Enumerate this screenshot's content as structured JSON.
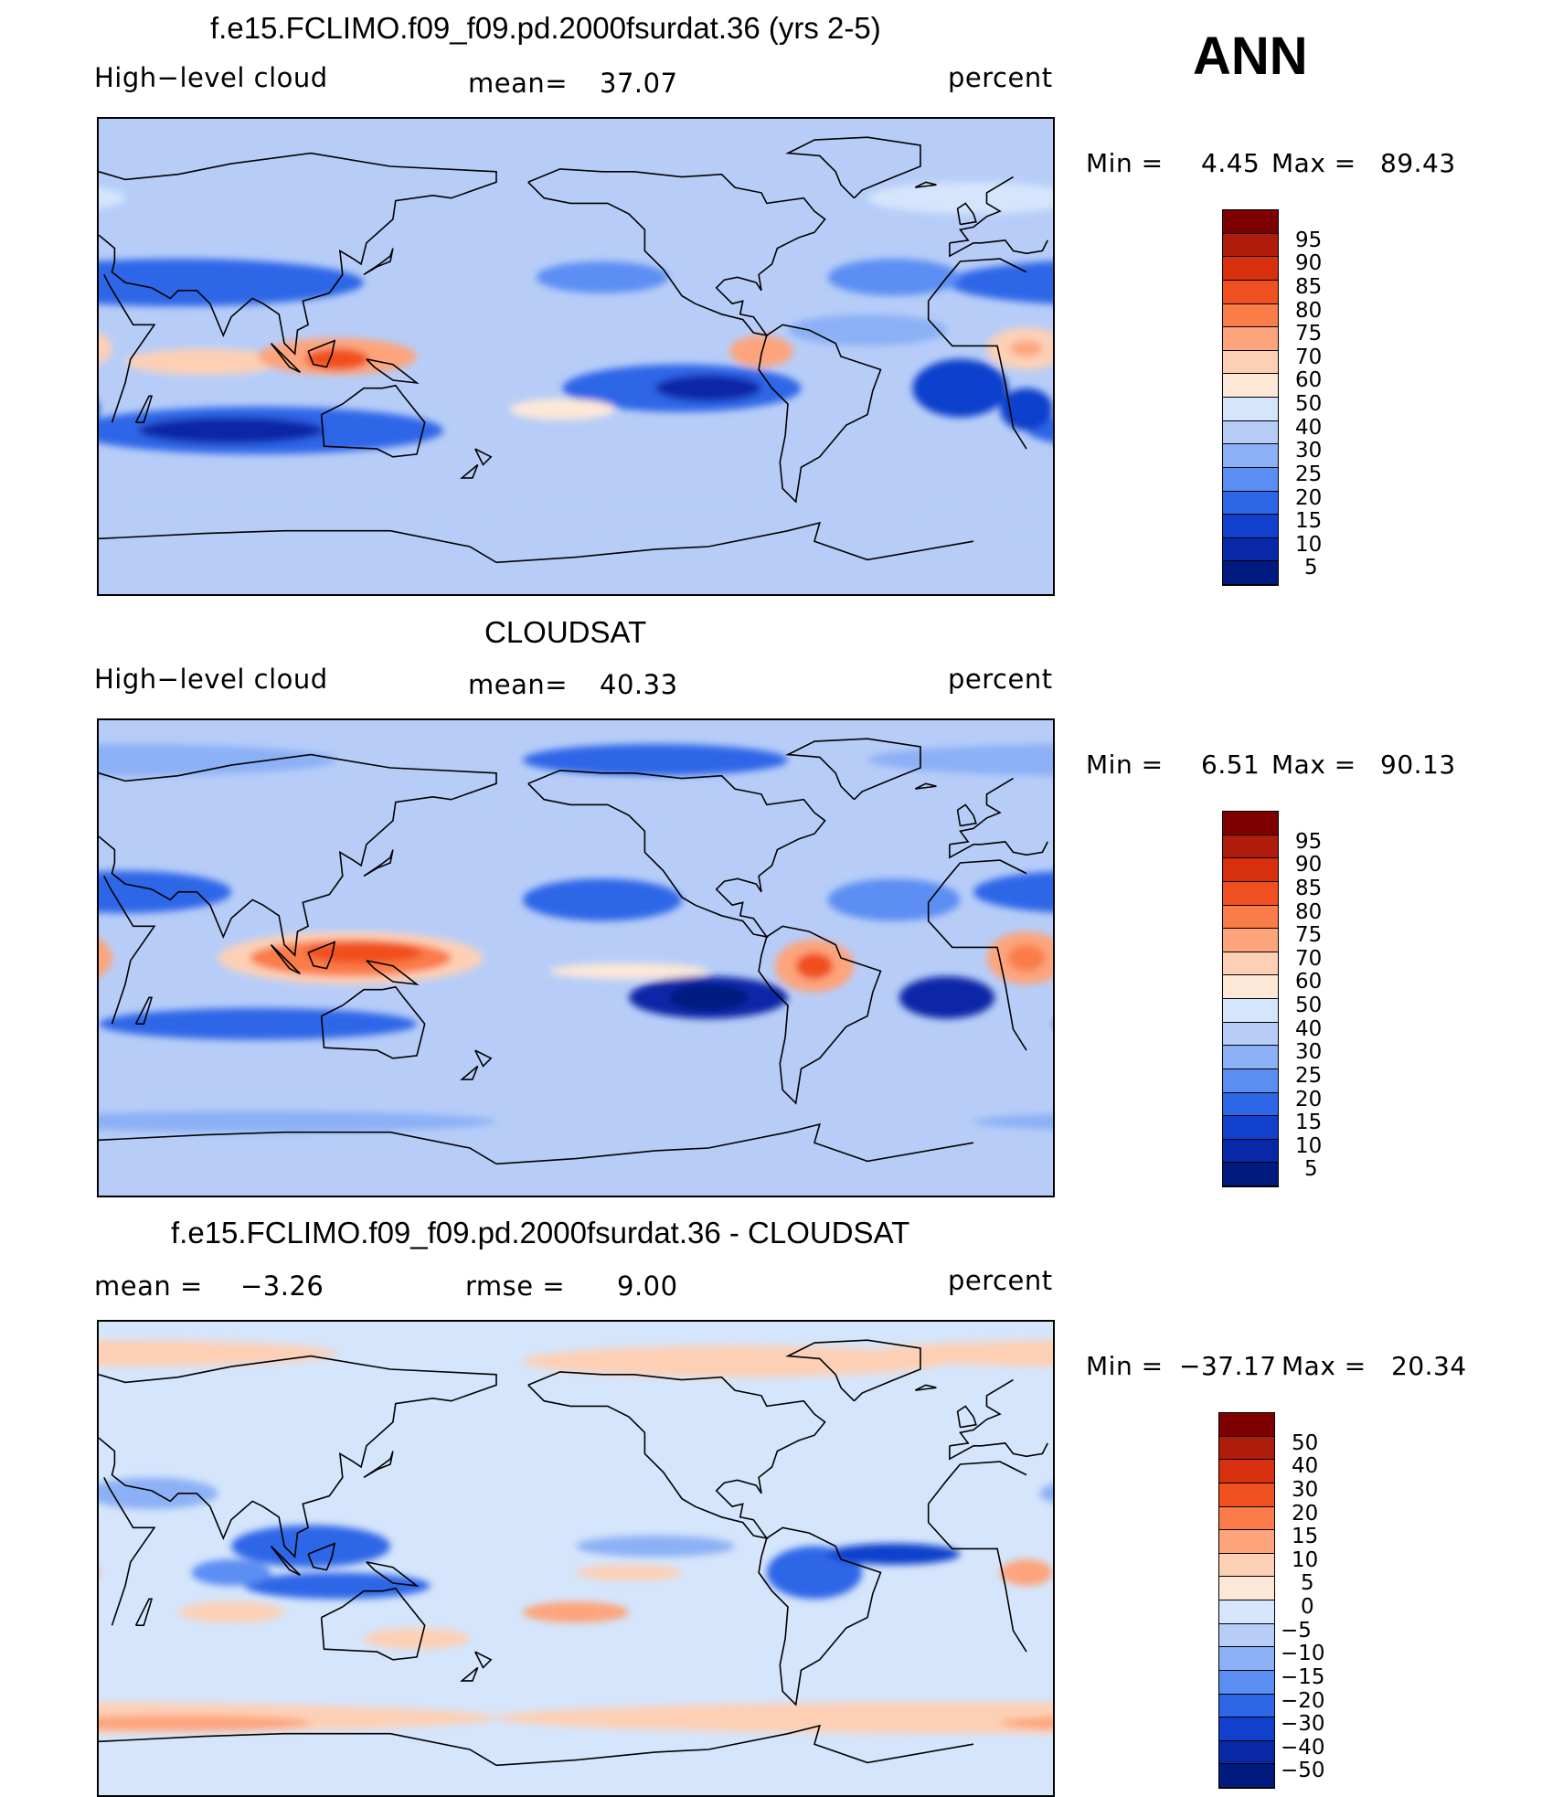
{
  "season": "ANN",
  "chart_data": [
    {
      "type": "heatmap",
      "title": "f.e15.FCLIMO.f09_f09.pd.2000fsurdat.36 (yrs 2-5)",
      "left_label": "High−level cloud",
      "stat_label": "mean=",
      "stat_value": "37.07",
      "units": "percent",
      "range_label_min": "Min  =",
      "min": "4.45",
      "range_label_max": "Max  =",
      "max": "89.43",
      "levels": [
        "95",
        "90",
        "85",
        "80",
        "75",
        "70",
        "60",
        "50",
        "40",
        "30",
        "25",
        "20",
        "15",
        "10",
        "5"
      ],
      "colors": [
        "#7f0000",
        "#b01c0c",
        "#d8300f",
        "#f0501f",
        "#fa7c48",
        "#fda47c",
        "#fdd0b6",
        "#fde8d8",
        "#d5e5fb",
        "#b7cdf8",
        "#8bb0f5",
        "#5b8ef3",
        "#2e66e8",
        "#1040cc",
        "#0828a8",
        "#001a80"
      ]
    },
    {
      "type": "heatmap",
      "title": "CLOUDSAT",
      "left_label": "High−level cloud",
      "stat_label": "mean=",
      "stat_value": "40.33",
      "units": "percent",
      "range_label_min": "Min  =",
      "min": "6.51",
      "range_label_max": "Max  =",
      "max": "90.13",
      "levels": [
        "95",
        "90",
        "85",
        "80",
        "75",
        "70",
        "60",
        "50",
        "40",
        "30",
        "25",
        "20",
        "15",
        "10",
        "5"
      ],
      "colors": [
        "#7f0000",
        "#b01c0c",
        "#d8300f",
        "#f0501f",
        "#fa7c48",
        "#fda47c",
        "#fdd0b6",
        "#fde8d8",
        "#d5e5fb",
        "#b7cdf8",
        "#8bb0f5",
        "#5b8ef3",
        "#2e66e8",
        "#1040cc",
        "#0828a8",
        "#001a80"
      ]
    },
    {
      "type": "heatmap",
      "title": "f.e15.FCLIMO.f09_f09.pd.2000fsurdat.36 - CLOUDSAT",
      "left_label": "mean  =",
      "left_value": "−3.26",
      "stat_label": "rmse  =",
      "stat_value": "9.00",
      "units": "percent",
      "range_label_min": "Min  =",
      "min": "−37.17",
      "range_label_max": "Max  =",
      "max": "20.34",
      "levels": [
        "50",
        "40",
        "30",
        "20",
        "15",
        "10",
        "5",
        "0",
        "−5",
        "−10",
        "−15",
        "−20",
        "−30",
        "−40",
        "−50"
      ],
      "colors": [
        "#7f0000",
        "#b01c0c",
        "#d8300f",
        "#f0501f",
        "#fa7c48",
        "#fda47c",
        "#fdd0b6",
        "#fde8d8",
        "#d5e5fb",
        "#b7cdf8",
        "#8bb0f5",
        "#5b8ef3",
        "#2e66e8",
        "#1040cc",
        "#0828a8",
        "#001a80"
      ]
    }
  ]
}
